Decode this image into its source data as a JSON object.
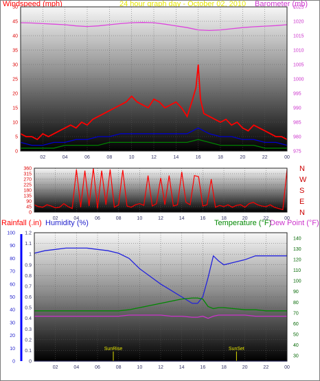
{
  "header": {
    "windspeed_label": "Windspeed (mph)",
    "title": "24 hour graph day - October 02, 2010",
    "barometer_label": "Barometer (mb)"
  },
  "bottom_header": {
    "rainfall_label": "Rainfall (.in)",
    "humidity_label": "Humidity (%)",
    "temperature_label": "Temperature (°F)",
    "dewpoint_label": "Dew Point (°F)"
  },
  "markers": {
    "sunrise": "SunRise",
    "sunset": "SunSet"
  },
  "colors": {
    "wind": "#ff0000",
    "avg_wind": "#0000cc",
    "gust_low": "#008000",
    "gust_peak": "#ff5a00",
    "barometer": "#dd44dd",
    "humidity": "#2222dd",
    "temperature": "#008800",
    "dewpoint": "#cc33cc",
    "rain": "#0000ff",
    "title": "#e6e600",
    "direction_label": "#cc0000"
  },
  "chart_data": [
    {
      "type": "line",
      "title": "24 hour graph day - October 02, 2010",
      "x_ticks": [
        "02",
        "04",
        "06",
        "08",
        "10",
        "12",
        "14",
        "16",
        "18",
        "20",
        "22",
        "00"
      ],
      "xlim": [
        0,
        24
      ],
      "left_axis": {
        "label": "Windspeed (mph)",
        "ticks": [
          0,
          5,
          10,
          15,
          20,
          25,
          30,
          35,
          40,
          45,
          50
        ],
        "ylim": [
          0,
          50
        ]
      },
      "right_axis": {
        "label": "Barometer (mb)",
        "ticks": [
          975,
          980,
          985,
          990,
          995,
          1000,
          1005,
          1010,
          1015,
          1020,
          1025
        ],
        "ylim": [
          975,
          1025
        ]
      },
      "series": [
        {
          "color": "#ff0000",
          "axis": "left",
          "x": [
            0,
            0.5,
            1,
            1.5,
            2,
            2.5,
            3,
            3.5,
            4,
            4.5,
            5,
            5.5,
            6,
            6.5,
            7,
            7.5,
            8,
            8.5,
            9,
            9.5,
            10,
            10.5,
            11,
            11.5,
            12,
            12.5,
            13,
            13.5,
            14,
            14.5,
            15,
            15.5,
            15.8,
            16,
            16.2,
            16.5,
            17,
            17.5,
            18,
            18.5,
            19,
            19.5,
            20,
            20.5,
            21,
            21.5,
            22,
            22.5,
            23,
            23.5,
            24
          ],
          "y": [
            6,
            5,
            5,
            4,
            6,
            5,
            6,
            7,
            8,
            9,
            8,
            10,
            9,
            11,
            12,
            13,
            14,
            15,
            16,
            17,
            19,
            17,
            16,
            15,
            18,
            17,
            15,
            16,
            17,
            15,
            12,
            18,
            22,
            30,
            18,
            13,
            12,
            11,
            10,
            11,
            9,
            10,
            8,
            7,
            9,
            8,
            7,
            6,
            5,
            5,
            4
          ]
        },
        {
          "color": "#0000cc",
          "axis": "left",
          "x": [
            0,
            1,
            2,
            3,
            4,
            5,
            6,
            7,
            8,
            9,
            10,
            11,
            12,
            13,
            14,
            15,
            16,
            17,
            18,
            19,
            20,
            21,
            22,
            23,
            24
          ],
          "y": [
            3,
            2,
            2,
            3,
            3,
            4,
            4,
            5,
            5,
            6,
            6,
            6,
            6,
            6,
            6,
            6,
            8,
            6,
            5,
            5,
            4,
            4,
            3,
            3,
            2
          ]
        },
        {
          "color": "#008000",
          "axis": "left",
          "x": [
            0,
            1,
            2,
            3,
            4,
            5,
            6,
            7,
            8,
            9,
            10,
            11,
            12,
            13,
            14,
            15,
            16,
            17,
            18,
            19,
            20,
            21,
            22,
            23,
            24
          ],
          "y": [
            1,
            1,
            1,
            1,
            2,
            2,
            2,
            2,
            3,
            3,
            3,
            3,
            3,
            3,
            3,
            3,
            4,
            3,
            2,
            2,
            2,
            2,
            1,
            1,
            1
          ]
        },
        {
          "color": "#dd44dd",
          "axis": "right",
          "x": [
            0,
            1,
            2,
            3,
            4,
            5,
            6,
            7,
            8,
            9,
            10,
            11,
            12,
            13,
            14,
            15,
            16,
            17,
            18,
            19,
            20,
            21,
            22,
            23,
            24
          ],
          "y": [
            1019.5,
            1019.4,
            1019.2,
            1019,
            1018.8,
            1018.4,
            1018.2,
            1018.4,
            1018.8,
            1019.2,
            1019.5,
            1019.6,
            1019.5,
            1019,
            1018.4,
            1017.8,
            1017,
            1016.8,
            1017,
            1017.4,
            1017.8,
            1018.1,
            1018.3,
            1018.5,
            1018.8
          ]
        }
      ]
    },
    {
      "type": "line",
      "title": "",
      "x_ticks": [
        "02",
        "04",
        "06",
        "08",
        "10",
        "12",
        "14",
        "16",
        "18",
        "20",
        "22",
        "00"
      ],
      "xlim": [
        0,
        24
      ],
      "left_axis": {
        "label": "",
        "ticks": [
          0,
          45,
          90,
          135,
          180,
          225,
          270,
          315,
          360
        ],
        "ylim": [
          0,
          360
        ]
      },
      "right_axis": {
        "label": "",
        "ticks": [
          "N",
          "E",
          "S",
          "W",
          "N"
        ],
        "ylim": [
          0,
          360
        ]
      },
      "series": [
        {
          "color": "#ff0000",
          "axis": "left",
          "x": [
            0,
            0.4,
            0.8,
            1.2,
            1.6,
            2,
            2.4,
            2.8,
            3.2,
            3.6,
            4,
            4.4,
            4.8,
            5.2,
            5.6,
            6,
            6.4,
            6.8,
            7.2,
            7.6,
            8,
            8.4,
            8.8,
            9.2,
            9.6,
            10,
            10.4,
            10.8,
            11.2,
            11.6,
            12,
            12.4,
            12.8,
            13.2,
            13.6,
            14,
            14.4,
            14.8,
            15.2,
            15.6,
            16,
            16.4,
            16.8,
            17.2,
            17.6,
            18,
            18.4,
            18.8,
            19.2,
            19.6,
            20,
            20.4,
            20.8,
            21.2,
            21.6,
            22,
            22.4,
            22.8,
            23.2,
            23.6,
            24
          ],
          "y": [
            60,
            45,
            40,
            60,
            50,
            35,
            40,
            70,
            45,
            30,
            350,
            40,
            340,
            50,
            360,
            30,
            340,
            60,
            350,
            40,
            60,
            345,
            50,
            40,
            60,
            70,
            55,
            300,
            50,
            70,
            280,
            60,
            300,
            50,
            60,
            330,
            80,
            60,
            300,
            290,
            50,
            60,
            270,
            40,
            55,
            45,
            60,
            40,
            55,
            60,
            40,
            70,
            80,
            60,
            50,
            45,
            60,
            40,
            30,
            20,
            350
          ]
        }
      ]
    },
    {
      "type": "line",
      "title": "",
      "x_ticks": [
        "02",
        "04",
        "06",
        "08",
        "10",
        "12",
        "14",
        "16",
        "18",
        "20",
        "22",
        "00"
      ],
      "xlim": [
        0,
        24
      ],
      "rain_axis": {
        "label": "Rainfall (.in)",
        "ticks": [
          0,
          0.1,
          0.2,
          0.3,
          0.4,
          0.5,
          0.6,
          0.7,
          0.8,
          0.9,
          1,
          1.1,
          1.2
        ],
        "ylim": [
          0,
          1.2
        ]
      },
      "humidity_axis": {
        "label": "Humidity (%)",
        "ticks": [
          0,
          10,
          20,
          30,
          40,
          50,
          60,
          70,
          80,
          90,
          100
        ],
        "ylim": [
          0,
          100
        ]
      },
      "temperature_axis": {
        "label": "Temperature (°F)",
        "ticks": [
          30,
          40,
          50,
          60,
          70,
          80,
          90,
          100,
          110,
          120,
          130,
          140
        ],
        "ylim": [
          25,
          145
        ]
      },
      "series": [
        {
          "color": "#2222dd",
          "axis": "humidity",
          "x": [
            0,
            1,
            2,
            3,
            4,
            5,
            6,
            7,
            8,
            9,
            10,
            11,
            12,
            13,
            14,
            15,
            15.5,
            16,
            16.5,
            17,
            17.5,
            18,
            19,
            20,
            21,
            22,
            23,
            24
          ],
          "y": [
            84,
            86,
            87,
            88,
            88,
            88,
            87,
            86,
            84,
            80,
            72,
            66,
            60,
            55,
            50,
            45,
            45,
            50,
            65,
            82,
            78,
            75,
            77,
            79,
            82,
            82,
            82,
            82
          ]
        },
        {
          "color": "#008800",
          "axis": "temperature",
          "x": [
            0,
            1,
            2,
            3,
            4,
            5,
            6,
            7,
            8,
            9,
            10,
            11,
            12,
            13,
            14,
            15,
            15.5,
            16,
            16.5,
            17,
            17.5,
            18,
            19,
            20,
            21,
            22,
            23,
            24
          ],
          "y": [
            72,
            72,
            72,
            72,
            72,
            72,
            72,
            72,
            72,
            73,
            75,
            77,
            79,
            81,
            83,
            84,
            84,
            83,
            76,
            74,
            75,
            75,
            74,
            73,
            73,
            72,
            72,
            72
          ]
        },
        {
          "color": "#cc33cc",
          "axis": "temperature",
          "x": [
            0,
            1,
            2,
            3,
            4,
            5,
            6,
            7,
            8,
            9,
            10,
            11,
            12,
            13,
            14,
            15,
            15.5,
            16,
            16.5,
            17,
            17.5,
            18,
            19,
            20,
            21,
            22,
            23,
            24
          ],
          "y": [
            67,
            67,
            67,
            67,
            67,
            67,
            67,
            67,
            67,
            68,
            68,
            68,
            68,
            67,
            67,
            66,
            66,
            67,
            65,
            67,
            68,
            68,
            68,
            68,
            67,
            67,
            67,
            67
          ]
        },
        {
          "color": "#0000ff",
          "axis": "rain",
          "x": [
            0,
            24
          ],
          "y": [
            0,
            0
          ]
        }
      ],
      "events": [
        {
          "label": "SunRise",
          "x": 7.5
        },
        {
          "label": "SunSet",
          "x": 19.2
        }
      ]
    }
  ]
}
